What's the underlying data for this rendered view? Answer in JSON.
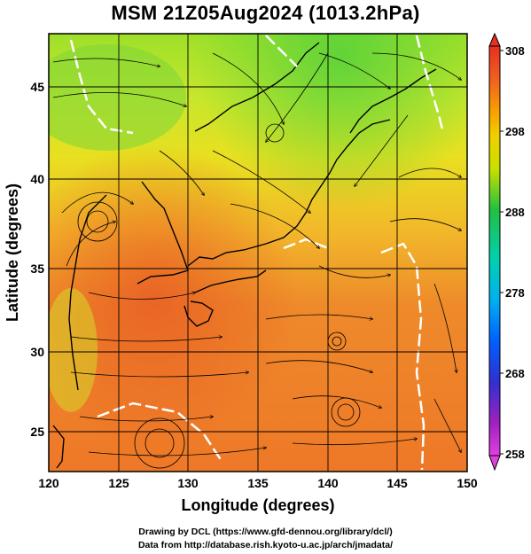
{
  "title": "MSM 21Z05Aug2024 (1013.2hPa)",
  "map": {
    "lon_range": [
      120,
      150
    ],
    "lat_range": [
      22.5,
      48
    ],
    "xlabel": "Longitude (degrees)",
    "ylabel": "Latitude  (degrees)",
    "x_ticks": [
      "120",
      "125",
      "130",
      "135",
      "140",
      "145",
      "150"
    ],
    "y_ticks": [
      "25",
      "30",
      "35",
      "40",
      "45"
    ]
  },
  "colorbar": {
    "ticks": [
      "308",
      "298",
      "288",
      "278",
      "268",
      "258"
    ],
    "min": 258,
    "max": 308,
    "colors": [
      "#e040e0",
      "#a020c0",
      "#3030d0",
      "#0060ff",
      "#00b0f0",
      "#00d0b0",
      "#20c040",
      "#70d020",
      "#c8e000",
      "#f0d000",
      "#f8a000",
      "#f06020",
      "#e83020"
    ]
  },
  "credits": {
    "line1": "Drawing by DCL (https://www.gfd-dennou.org/library/dcl/)",
    "line2": "Data from http://database.rish.kyoto-u.ac.jp/arch/jmadata/"
  }
}
